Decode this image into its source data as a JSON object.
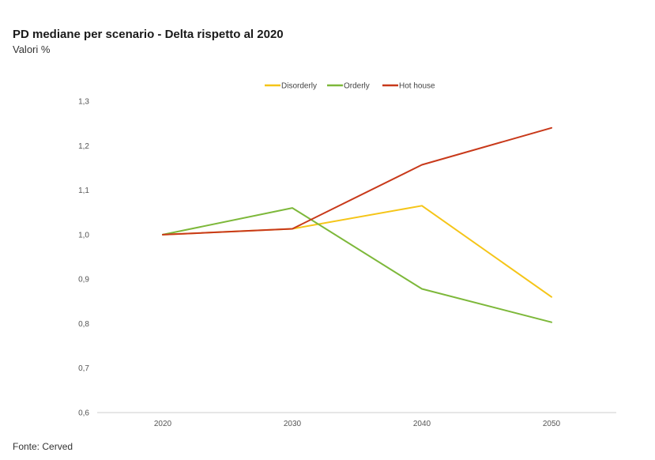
{
  "header": {
    "title": "PD mediane per scenario - Delta rispetto al 2020",
    "subtitle": "Valori %"
  },
  "footer": {
    "source": "Fonte: Cerved"
  },
  "chart_data": {
    "type": "line",
    "title": "PD mediane per scenario - Delta rispetto al 2020",
    "subtitle": "Valori %",
    "x": [
      "2020",
      "2030",
      "2040",
      "2050"
    ],
    "ylim": [
      0.6,
      1.3
    ],
    "yticks": [
      0.6,
      0.7,
      0.8,
      0.9,
      1.0,
      1.1,
      1.2,
      1.3
    ],
    "ytick_labels": [
      "0,6",
      "0,7",
      "0,8",
      "0,9",
      "1,0",
      "1,1",
      "1,2",
      "1,3"
    ],
    "legend_position": "top-center",
    "grid": false,
    "series": [
      {
        "name": "Disorderly",
        "color": "#F5C518",
        "values": [
          1.0,
          1.013,
          1.065,
          0.86
        ]
      },
      {
        "name": "Orderly",
        "color": "#7DB83A",
        "values": [
          1.0,
          1.06,
          0.878,
          0.803
        ]
      },
      {
        "name": "Hot house",
        "color": "#C8391A",
        "values": [
          1.0,
          1.013,
          1.157,
          1.24
        ]
      }
    ]
  }
}
